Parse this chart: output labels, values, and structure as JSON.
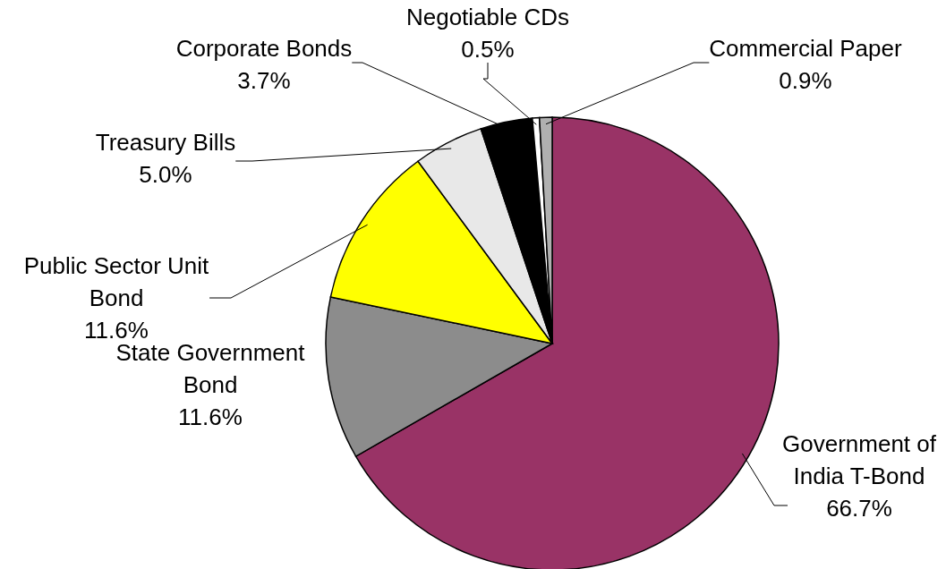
{
  "chart_data": {
    "type": "pie",
    "categories": [
      "Government of India T-Bond",
      "State Government Bond",
      "Public Sector Unit Bond",
      "Treasury Bills",
      "Corporate Bonds",
      "Negotiable CDs",
      "Commercial Paper"
    ],
    "values": [
      66.7,
      11.6,
      11.6,
      5.0,
      3.7,
      0.5,
      0.9
    ],
    "colors": [
      "#993366",
      "#8c8c8c",
      "#ffff00",
      "#e8e8e8",
      "#000000",
      "#ffffff",
      "#b0b0b0"
    ],
    "value_labels": [
      "66.7%",
      "11.6%",
      "11.6%",
      "5.0%",
      "3.7%",
      "0.5%",
      "0.9%"
    ],
    "legend": false
  }
}
